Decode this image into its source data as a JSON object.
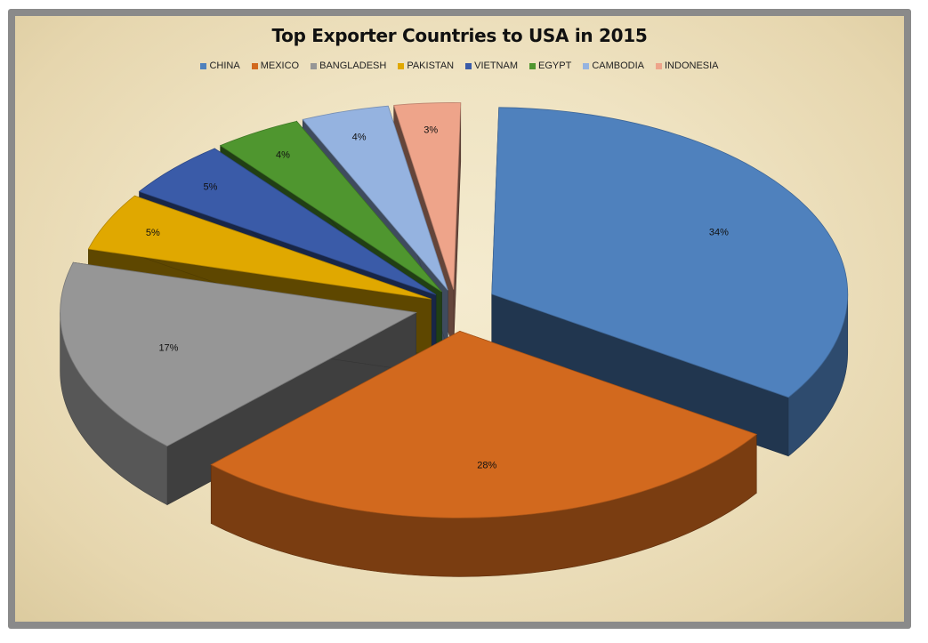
{
  "chart_data": {
    "type": "pie",
    "style": "3d-exploded",
    "title": "Top Exporter Countries to USA in 2015",
    "legend_position": "top",
    "categories": [
      "CHINA",
      "MEXICO",
      "BANGLADESH",
      "PAKISTAN",
      "VIETNAM",
      "EGYPT",
      "CAMBODIA",
      "INDONESIA"
    ],
    "values": [
      34,
      28,
      17,
      5,
      5,
      4,
      4,
      3
    ],
    "labels": [
      "34%",
      "28%",
      "17%",
      "5%",
      "5%",
      "4%",
      "4%",
      "3%"
    ],
    "colors": [
      "#4f81bd",
      "#d2691e",
      "#969696",
      "#e0a800",
      "#3a5ba8",
      "#4f962f",
      "#95b3e0",
      "#eea48a"
    ]
  }
}
